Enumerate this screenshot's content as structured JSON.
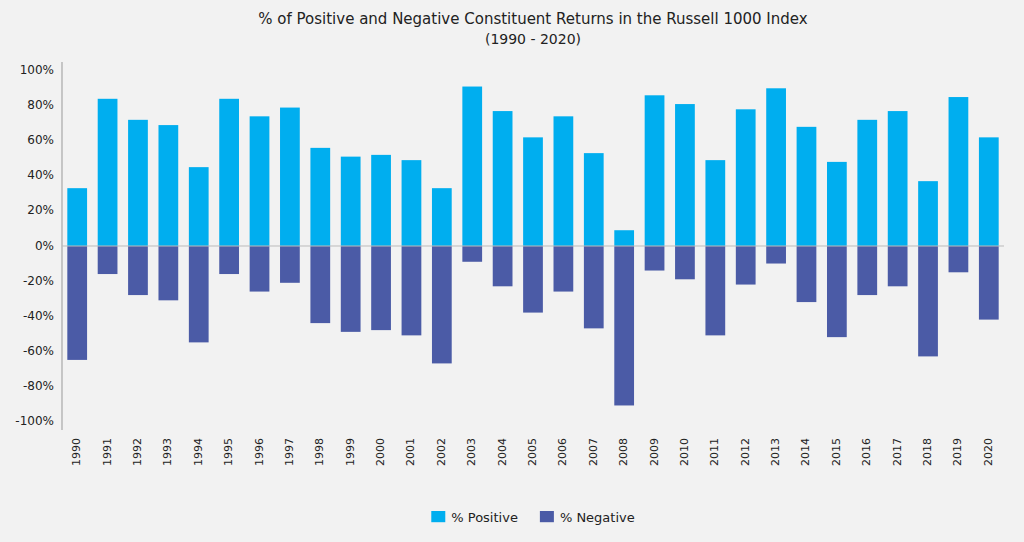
{
  "chart_data": {
    "type": "bar",
    "title": "% of Positive and Negative Constituent Returns in the Russell 1000 Index",
    "subtitle": "(1990 - 2020)",
    "categories": [
      "1990",
      "1991",
      "1992",
      "1993",
      "1994",
      "1995",
      "1996",
      "1997",
      "1998",
      "1999",
      "2000",
      "2001",
      "2002",
      "2003",
      "2004",
      "2005",
      "2006",
      "2007",
      "2008",
      "2009",
      "2010",
      "2011",
      "2012",
      "2013",
      "2014",
      "2015",
      "2016",
      "2017",
      "2018",
      "2019",
      "2020"
    ],
    "series": [
      {
        "name": "% Positive",
        "color": "#00AEEF",
        "values": [
          33,
          84,
          72,
          69,
          45,
          84,
          74,
          79,
          56,
          51,
          52,
          49,
          33,
          91,
          77,
          62,
          74,
          53,
          9,
          86,
          81,
          49,
          78,
          90,
          68,
          48,
          72,
          77,
          37,
          85,
          62
        ]
      },
      {
        "name": "% Negative",
        "color": "#4B5BA6",
        "values": [
          -65,
          -16,
          -28,
          -31,
          -55,
          -16,
          -26,
          -21,
          -44,
          -49,
          -48,
          -51,
          -67,
          -9,
          -23,
          -38,
          -26,
          -47,
          -91,
          -14,
          -19,
          -51,
          -22,
          -10,
          -32,
          -52,
          -28,
          -23,
          -63,
          -15,
          -42
        ]
      }
    ],
    "stacked": true,
    "ylim": [
      -105,
      105
    ],
    "yticks": [
      {
        "value": -100,
        "label": "-100%"
      },
      {
        "value": -80,
        "label": "-80%"
      },
      {
        "value": -60,
        "label": "-60%"
      },
      {
        "value": -40,
        "label": "-40%"
      },
      {
        "value": -20,
        "label": "-20%"
      },
      {
        "value": 0,
        "label": "0%"
      },
      {
        "value": 20,
        "label": "20%"
      },
      {
        "value": 40,
        "label": "40%"
      },
      {
        "value": 60,
        "label": "60%"
      },
      {
        "value": 80,
        "label": "80%"
      },
      {
        "value": 100,
        "label": "100%"
      }
    ],
    "grid": false,
    "legend": "bottom"
  }
}
